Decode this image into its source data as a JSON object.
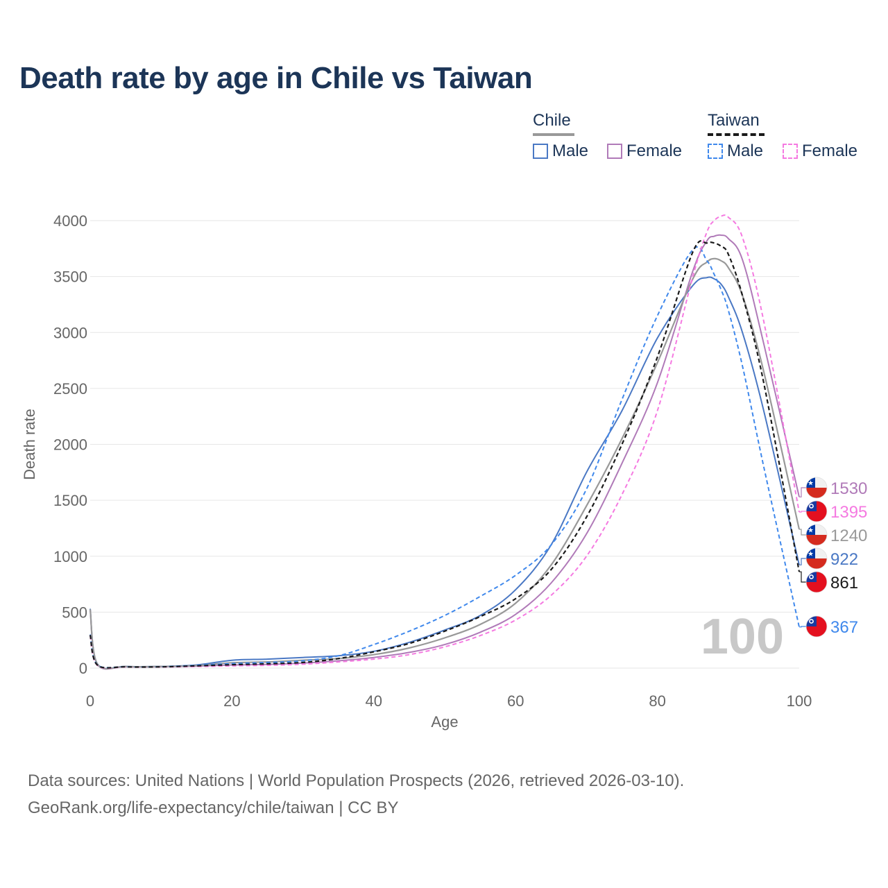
{
  "title": "Death rate by age in Chile vs Taiwan",
  "legend": {
    "chile": {
      "label": "Chile",
      "male": "Male",
      "female": "Female"
    },
    "taiwan": {
      "label": "Taiwan",
      "male": "Male",
      "female": "Female"
    }
  },
  "colors": {
    "chile_male": "#4a78c4",
    "chile_female": "#b07ab8",
    "chile_total": "#999999",
    "taiwan_male": "#3f88ec",
    "taiwan_female": "#f57ae1",
    "taiwan_total": "#1a1a1a",
    "grid": "#e6e6e6",
    "axis_text": "#666666",
    "big_year": "#c8c8c8"
  },
  "chart_data": {
    "type": "line",
    "title": "Death rate by age in Chile vs Taiwan",
    "xlabel": "Age",
    "ylabel": "Death rate",
    "xlim": [
      0,
      100
    ],
    "ylim": [
      0,
      4000
    ],
    "xticks": [
      0,
      20,
      40,
      60,
      80,
      100
    ],
    "yticks": [
      0,
      500,
      1000,
      1500,
      2000,
      2500,
      3000,
      3500,
      4000
    ],
    "big_label": "100",
    "x": [
      0,
      1,
      5,
      10,
      15,
      20,
      25,
      30,
      35,
      40,
      45,
      50,
      55,
      60,
      65,
      70,
      75,
      80,
      85,
      87,
      88,
      89,
      90,
      92,
      95,
      100
    ],
    "series": [
      {
        "name": "Chile Male",
        "key": "chile_male",
        "dash": false,
        "values": [
          530,
          40,
          15,
          15,
          28,
          70,
          80,
          95,
          110,
          150,
          230,
          340,
          470,
          700,
          1100,
          1750,
          2300,
          2950,
          3420,
          3490,
          3480,
          3430,
          3320,
          3000,
          2300,
          922
        ]
      },
      {
        "name": "Chile Female",
        "key": "chile_female",
        "dash": false,
        "values": [
          520,
          35,
          12,
          12,
          18,
          28,
          33,
          45,
          65,
          95,
          140,
          210,
          320,
          480,
          760,
          1200,
          1830,
          2550,
          3550,
          3820,
          3860,
          3870,
          3840,
          3650,
          2900,
          1530
        ]
      },
      {
        "name": "Chile Total",
        "key": "chile_total",
        "dash": false,
        "values": [
          525,
          38,
          14,
          14,
          23,
          48,
          55,
          70,
          85,
          120,
          180,
          270,
          390,
          580,
          920,
          1450,
          2050,
          2730,
          3480,
          3630,
          3660,
          3640,
          3580,
          3330,
          2650,
          1240
        ]
      },
      {
        "name": "Taiwan Male",
        "key": "taiwan_male",
        "dash": true,
        "values": [
          300,
          30,
          12,
          12,
          25,
          40,
          50,
          65,
          110,
          210,
          330,
          470,
          640,
          830,
          1100,
          1600,
          2400,
          3150,
          3740,
          3640,
          3520,
          3380,
          3200,
          2700,
          1800,
          367
        ]
      },
      {
        "name": "Taiwan Female",
        "key": "taiwan_female",
        "dash": true,
        "values": [
          290,
          25,
          10,
          10,
          14,
          20,
          25,
          35,
          55,
          80,
          120,
          190,
          290,
          430,
          650,
          1000,
          1550,
          2300,
          3500,
          3900,
          4000,
          4040,
          4030,
          3850,
          3100,
          1395
        ]
      },
      {
        "name": "Taiwan Total",
        "key": "taiwan_total",
        "dash": true,
        "values": [
          295,
          28,
          11,
          11,
          20,
          30,
          38,
          50,
          85,
          145,
          220,
          330,
          460,
          620,
          880,
          1350,
          2000,
          2780,
          3720,
          3800,
          3800,
          3770,
          3700,
          3330,
          2550,
          861
        ]
      }
    ],
    "end_labels": [
      {
        "text": "1530",
        "country": "chile",
        "key": "chile_female",
        "value": 1530
      },
      {
        "text": "1395",
        "country": "taiwan",
        "key": "taiwan_female",
        "value": 1395
      },
      {
        "text": "1240",
        "country": "chile",
        "key": "chile_total",
        "value": 1240
      },
      {
        "text": "922",
        "country": "chile",
        "key": "chile_male",
        "value": 922
      },
      {
        "text": "861",
        "country": "taiwan",
        "key": "taiwan_total",
        "value": 861
      },
      {
        "text": "367",
        "country": "taiwan",
        "key": "taiwan_male",
        "value": 367
      }
    ]
  },
  "footer": {
    "line1": "Data sources: United Nations | World Population Prospects (2026, retrieved 2026-03-10).",
    "line2": "GeoRank.org/life-expectancy/chile/taiwan | CC BY"
  }
}
